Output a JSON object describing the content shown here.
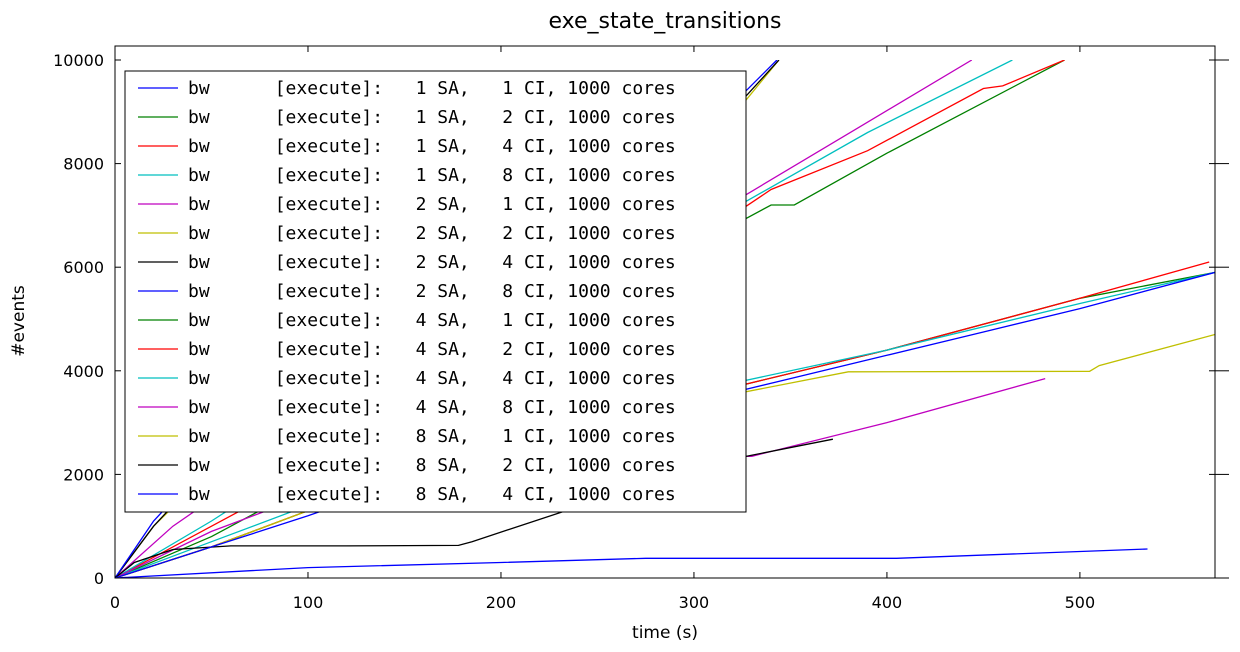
{
  "chart_data": {
    "type": "line",
    "title": "exe_state_transitions",
    "xlabel": "time (s)",
    "ylabel": "#events",
    "xlim": [
      0,
      570
    ],
    "ylim": [
      0,
      10000
    ],
    "xticks": [
      0,
      100,
      200,
      300,
      400,
      500
    ],
    "yticks": [
      0,
      2000,
      4000,
      6000,
      8000,
      10000
    ],
    "xtick_labels": [
      "0",
      "100",
      "200",
      "300",
      "400",
      "500"
    ],
    "ytick_labels": [
      "0",
      "2000",
      "4000",
      "6000",
      "8000",
      "10000"
    ],
    "grid": false,
    "legend_position": "upper-left",
    "series": [
      {
        "name": "bw      [execute]:   1 SA,   1 CI, 1000 cores",
        "color": "#0000ff",
        "points": [
          [
            0,
            0
          ],
          [
            100,
            200
          ],
          [
            200,
            300
          ],
          [
            275,
            380
          ],
          [
            405,
            380
          ],
          [
            535,
            560
          ]
        ]
      },
      {
        "name": "bw      [execute]:   1 SA,   2 CI, 1000 cores",
        "color": "#008000",
        "points": [
          [
            0,
            0
          ],
          [
            50,
            800
          ],
          [
            100,
            1800
          ],
          [
            200,
            3800
          ],
          [
            300,
            6400
          ],
          [
            340,
            7200
          ],
          [
            352,
            7200
          ],
          [
            400,
            8200
          ],
          [
            492,
            10000
          ]
        ]
      },
      {
        "name": "bw      [execute]:   1 SA,   4 CI, 1000 cores",
        "color": "#ff0000",
        "points": [
          [
            0,
            0
          ],
          [
            50,
            1000
          ],
          [
            100,
            2000
          ],
          [
            200,
            4200
          ],
          [
            300,
            6500
          ],
          [
            340,
            7500
          ],
          [
            390,
            8250
          ],
          [
            450,
            9450
          ],
          [
            460,
            9500
          ],
          [
            492,
            10000
          ]
        ]
      },
      {
        "name": "bw      [execute]:   1 SA,   8 CI, 1000 cores",
        "color": "#00bfbf",
        "points": [
          [
            0,
            0
          ],
          [
            50,
            1100
          ],
          [
            100,
            2300
          ],
          [
            200,
            4700
          ],
          [
            300,
            6700
          ],
          [
            390,
            8600
          ],
          [
            465,
            10000
          ]
        ]
      },
      {
        "name": "bw      [execute]:   2 SA,   1 CI, 1000 cores",
        "color": "#bf00bf",
        "points": [
          [
            0,
            0
          ],
          [
            30,
            1000
          ],
          [
            100,
            2800
          ],
          [
            200,
            5000
          ],
          [
            300,
            6800
          ],
          [
            444,
            10000
          ]
        ]
      },
      {
        "name": "bw      [execute]:   2 SA,   2 CI, 1000 cores",
        "color": "#bfbf00",
        "points": [
          [
            0,
            0
          ],
          [
            20,
            1000
          ],
          [
            50,
            2100
          ],
          [
            100,
            3600
          ],
          [
            200,
            5900
          ],
          [
            300,
            8000
          ],
          [
            344,
            10000
          ]
        ]
      },
      {
        "name": "bw      [execute]:   2 SA,   4 CI, 1000 cores",
        "color": "#000000",
        "points": [
          [
            0,
            0
          ],
          [
            20,
            1000
          ],
          [
            50,
            2200
          ],
          [
            100,
            3700
          ],
          [
            200,
            6000
          ],
          [
            300,
            8200
          ],
          [
            344,
            10000
          ]
        ]
      },
      {
        "name": "bw      [execute]:   2 SA,   8 CI, 1000 cores",
        "color": "#0000ff",
        "points": [
          [
            0,
            0
          ],
          [
            20,
            1100
          ],
          [
            50,
            2300
          ],
          [
            100,
            3800
          ],
          [
            200,
            6100
          ],
          [
            300,
            8400
          ],
          [
            343,
            10000
          ]
        ]
      },
      {
        "name": "bw      [execute]:   4 SA,   1 CI, 1000 cores",
        "color": "#008000",
        "points": [
          [
            0,
            0
          ],
          [
            50,
            600
          ],
          [
            100,
            1300
          ],
          [
            200,
            2500
          ],
          [
            300,
            3500
          ],
          [
            400,
            4400
          ],
          [
            500,
            5400
          ],
          [
            570,
            5900
          ]
        ]
      },
      {
        "name": "bw      [execute]:   4 SA,   2 CI, 1000 cores",
        "color": "#ff0000",
        "points": [
          [
            0,
            0
          ],
          [
            50,
            600
          ],
          [
            100,
            1300
          ],
          [
            200,
            2500
          ],
          [
            300,
            3500
          ],
          [
            400,
            4400
          ],
          [
            500,
            5400
          ],
          [
            567,
            6100
          ]
        ]
      },
      {
        "name": "bw      [execute]:   4 SA,   4 CI, 1000 cores",
        "color": "#00bfbf",
        "points": [
          [
            0,
            0
          ],
          [
            50,
            700
          ],
          [
            100,
            1400
          ],
          [
            200,
            2600
          ],
          [
            300,
            3600
          ],
          [
            400,
            4400
          ],
          [
            500,
            5300
          ],
          [
            570,
            5900
          ]
        ]
      },
      {
        "name": "bw      [execute]:   4 SA,   8 CI, 1000 cores",
        "color": "#bf00bf",
        "points": [
          [
            0,
            0
          ],
          [
            50,
            900
          ],
          [
            100,
            1600
          ],
          [
            200,
            2100
          ],
          [
            300,
            2350
          ],
          [
            330,
            2350
          ],
          [
            400,
            3000
          ],
          [
            482,
            3850
          ]
        ]
      },
      {
        "name": "bw      [execute]:   8 SA,   1 CI, 1000 cores",
        "color": "#bfbf00",
        "points": [
          [
            0,
            0
          ],
          [
            50,
            600
          ],
          [
            100,
            1300
          ],
          [
            200,
            2500
          ],
          [
            300,
            3400
          ],
          [
            380,
            3980
          ],
          [
            505,
            3990
          ],
          [
            510,
            4100
          ],
          [
            570,
            4700
          ]
        ]
      },
      {
        "name": "bw      [execute]:   8 SA,   2 CI, 1000 cores",
        "color": "#000000",
        "points": [
          [
            0,
            0
          ],
          [
            10,
            300
          ],
          [
            30,
            550
          ],
          [
            60,
            620
          ],
          [
            120,
            620
          ],
          [
            178,
            630
          ],
          [
            185,
            700
          ],
          [
            250,
            1500
          ],
          [
            300,
            2150
          ],
          [
            372,
            2680
          ]
        ]
      },
      {
        "name": "bw      [execute]:   8 SA,   4 CI, 1000 cores",
        "color": "#0000ff",
        "points": [
          [
            0,
            0
          ],
          [
            50,
            600
          ],
          [
            100,
            1200
          ],
          [
            200,
            2500
          ],
          [
            300,
            3400
          ],
          [
            400,
            4300
          ],
          [
            450,
            4750
          ],
          [
            500,
            5200
          ],
          [
            570,
            5900
          ]
        ]
      }
    ]
  }
}
